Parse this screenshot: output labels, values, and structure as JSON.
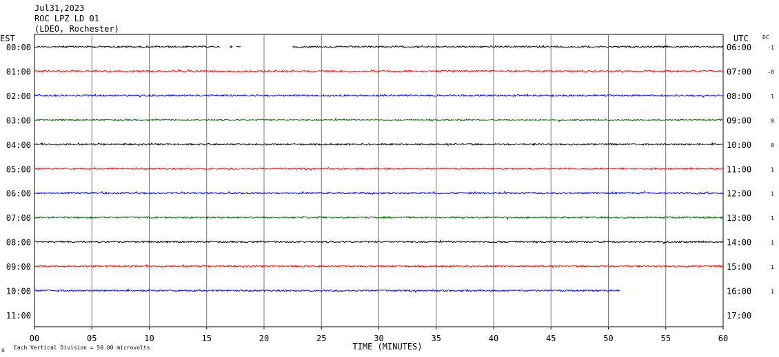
{
  "header": {
    "date": "Jul31,2023",
    "station": "ROC LPZ LD 01",
    "network": "(LDEO, Rochester)"
  },
  "left_zone": "EST",
  "right_zone": "UTC",
  "dc_label": "DC",
  "footer": {
    "mark": "µ",
    "scale_text": "Each Vertical Division =   50.00 microvolts"
  },
  "chart_data": {
    "type": "line",
    "title": "ROC LPZ LD 01",
    "xlabel": "TIME (MINUTES)",
    "ylabel": "",
    "xlim": [
      0,
      60
    ],
    "x_ticks": [
      "00",
      "05",
      "10",
      "15",
      "20",
      "25",
      "30",
      "35",
      "40",
      "45",
      "50",
      "55",
      "60"
    ],
    "grid": true,
    "rows": [
      {
        "est": "00:00",
        "utc": "06:00",
        "dc": "-1",
        "color": "#000000",
        "segments": [
          [
            0,
            16.2
          ],
          [
            17,
            17.3
          ],
          [
            17.6,
            18.0
          ],
          [
            22.5,
            60
          ]
        ]
      },
      {
        "est": "01:00",
        "utc": "07:00",
        "dc": "-0",
        "color": "#ff0000",
        "segments": [
          [
            0,
            60
          ]
        ]
      },
      {
        "est": "02:00",
        "utc": "08:00",
        "dc": "1",
        "color": "#0000ff",
        "segments": [
          [
            0,
            60
          ]
        ]
      },
      {
        "est": "03:00",
        "utc": "09:00",
        "dc": "0",
        "color": "#006400",
        "segments": [
          [
            0,
            60
          ]
        ]
      },
      {
        "est": "04:00",
        "utc": "10:00",
        "dc": "0",
        "color": "#000000",
        "segments": [
          [
            0,
            60
          ]
        ]
      },
      {
        "est": "05:00",
        "utc": "11:00",
        "dc": "1",
        "color": "#ff0000",
        "segments": [
          [
            0,
            60
          ]
        ]
      },
      {
        "est": "06:00",
        "utc": "12:00",
        "dc": "1",
        "color": "#0000ff",
        "segments": [
          [
            0,
            60
          ]
        ]
      },
      {
        "est": "07:00",
        "utc": "13:00",
        "dc": "1",
        "color": "#006400",
        "segments": [
          [
            0,
            60
          ]
        ]
      },
      {
        "est": "08:00",
        "utc": "14:00",
        "dc": "1",
        "color": "#000000",
        "segments": [
          [
            0,
            60
          ]
        ]
      },
      {
        "est": "09:00",
        "utc": "15:00",
        "dc": "1",
        "color": "#ff0000",
        "segments": [
          [
            0,
            60
          ]
        ]
      },
      {
        "est": "10:00",
        "utc": "16:00",
        "dc": "1",
        "color": "#0000ff",
        "segments": [
          [
            0,
            51
          ]
        ]
      },
      {
        "est": "11:00",
        "utc": "17:00",
        "dc": "",
        "color": "#000000",
        "segments": []
      }
    ]
  }
}
